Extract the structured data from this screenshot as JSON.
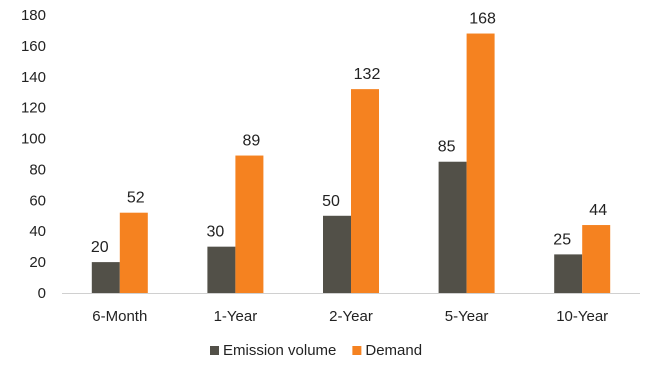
{
  "chart_data": {
    "type": "bar",
    "title": "",
    "xlabel": "",
    "ylabel": "",
    "categories": [
      "6-Month",
      "1-Year",
      "2-Year",
      "5-Year",
      "10-Year"
    ],
    "series": [
      {
        "name": "Emission volume",
        "values": [
          20,
          30,
          50,
          85,
          25
        ],
        "color": "#525048"
      },
      {
        "name": "Demand",
        "values": [
          52,
          89,
          132,
          168,
          44
        ],
        "color": "#F58220"
      }
    ],
    "ylim": [
      0,
      180
    ],
    "yticks": [
      0,
      20,
      40,
      60,
      80,
      100,
      120,
      140,
      160,
      180
    ],
    "grid": false,
    "legend_position": "bottom"
  }
}
